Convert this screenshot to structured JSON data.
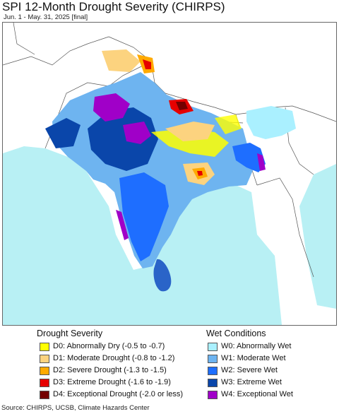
{
  "title": "SPI 12-Month Drought Severity (CHIRPS)",
  "subtitle": "Jun. 1 - May. 31, 2025 [final]",
  "colors": {
    "ocean": "#b8f0f4",
    "land_neutral": "#ffffff",
    "borders": "#555555"
  },
  "legend": {
    "drought": {
      "heading": "Drought Severity",
      "items": [
        {
          "label": "D0: Abnormally Dry (-0.5 to -0.7)",
          "color": "#ffff00"
        },
        {
          "label": "D1: Moderate Drought (-0.8 to -1.2)",
          "color": "#fcd37f"
        },
        {
          "label": "D2: Severe Drought (-1.3 to -1.5)",
          "color": "#ffaa00"
        },
        {
          "label": "D3: Extreme Drought (-1.6 to -1.9)",
          "color": "#e60000"
        },
        {
          "label": "D4: Exceptional Drought (-2.0 or less)",
          "color": "#730000"
        }
      ]
    },
    "wet": {
      "heading": "Wet Conditions",
      "items": [
        {
          "label": "W0: Abnormally Wet",
          "color": "#aaf0ff"
        },
        {
          "label": "W1: Moderate Wet",
          "color": "#6eb4f0"
        },
        {
          "label": "W2: Severe Wet",
          "color": "#1e6eff"
        },
        {
          "label": "W3: Extreme Wet",
          "color": "#0a46aa"
        },
        {
          "label": "W4: Exceptional Wet",
          "color": "#a000c8"
        }
      ]
    }
  },
  "source": "Source: CHIRPS, UCSB, Climate Hazards Center"
}
